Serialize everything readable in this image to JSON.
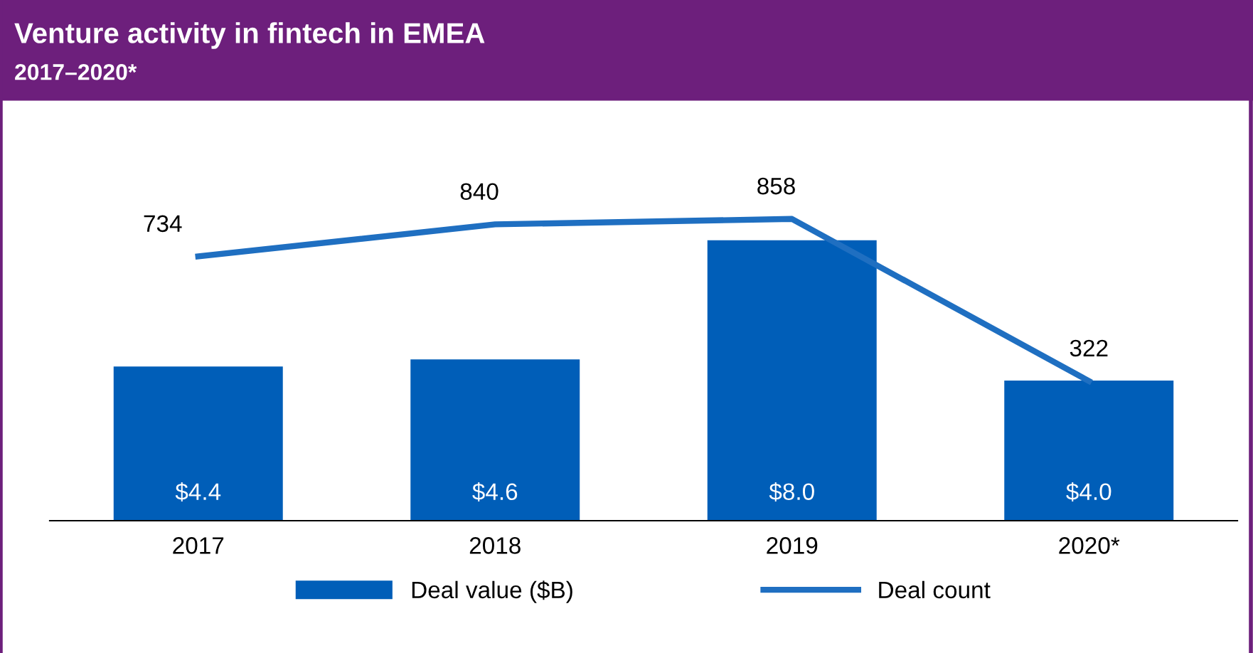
{
  "chart_data": {
    "type": "bar",
    "title": "Venture activity in fintech in EMEA",
    "subtitle": "2017–2020*",
    "categories": [
      "2017",
      "2018",
      "2019",
      "2020*"
    ],
    "series": [
      {
        "name": "Deal value ($B)",
        "color": "#005eb8",
        "values": [
          4.4,
          4.6,
          8.0,
          4.0
        ],
        "value_labels": [
          "$4.4",
          "$4.6",
          "$8.0",
          "$4.0"
        ]
      },
      {
        "name": "Deal count",
        "type": "line",
        "axis": "y2",
        "color": "#1f6fc1",
        "values": [
          734,
          840,
          858,
          322
        ],
        "value_labels": [
          "734",
          "840",
          "858",
          "322"
        ]
      }
    ],
    "tick_labels": "x",
    "legend": "bottom",
    "grid": false,
    "marker": "none",
    "line_style": "solid"
  }
}
